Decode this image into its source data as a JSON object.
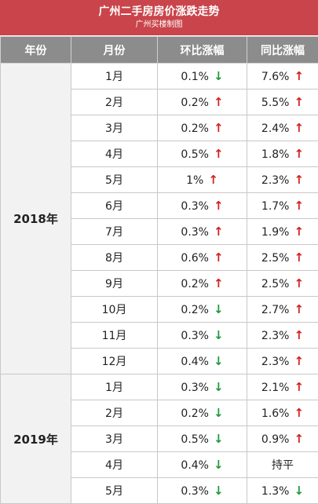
{
  "header": {
    "title": "广州二手房房价涨跌走势",
    "subtitle": "广州买楼制图"
  },
  "table": {
    "columns": [
      "年份",
      "月份",
      "环比涨幅",
      "同比涨幅"
    ],
    "groups": [
      {
        "year": "2018年",
        "rows": [
          {
            "month": "1月",
            "mom": {
              "value": "0.1%",
              "arrow": "↓",
              "color": "#1f9a3c"
            },
            "yoy": {
              "value": "7.6%",
              "arrow": "↑",
              "color": "#d42020"
            }
          },
          {
            "month": "2月",
            "mom": {
              "value": "0.2%",
              "arrow": "↑",
              "color": "#d42020"
            },
            "yoy": {
              "value": "5.5%",
              "arrow": "↑",
              "color": "#d42020"
            }
          },
          {
            "month": "3月",
            "mom": {
              "value": "0.2%",
              "arrow": "↑",
              "color": "#d42020"
            },
            "yoy": {
              "value": "2.4%",
              "arrow": "↑",
              "color": "#d42020"
            }
          },
          {
            "month": "4月",
            "mom": {
              "value": "0.5%",
              "arrow": "↑",
              "color": "#d42020"
            },
            "yoy": {
              "value": "1.8%",
              "arrow": "↑",
              "color": "#d42020"
            }
          },
          {
            "month": "5月",
            "mom": {
              "value": "1%",
              "arrow": "↑",
              "color": "#d42020"
            },
            "yoy": {
              "value": "2.3%",
              "arrow": "↑",
              "color": "#d42020"
            }
          },
          {
            "month": "6月",
            "mom": {
              "value": "0.3%",
              "arrow": "↑",
              "color": "#d42020"
            },
            "yoy": {
              "value": "1.7%",
              "arrow": "↑",
              "color": "#d42020"
            }
          },
          {
            "month": "7月",
            "mom": {
              "value": "0.3%",
              "arrow": "↑",
              "color": "#d42020"
            },
            "yoy": {
              "value": "1.9%",
              "arrow": "↑",
              "color": "#d42020"
            }
          },
          {
            "month": "8月",
            "mom": {
              "value": "0.6%",
              "arrow": "↑",
              "color": "#d42020"
            },
            "yoy": {
              "value": "2.5%",
              "arrow": "↑",
              "color": "#d42020"
            }
          },
          {
            "month": "9月",
            "mom": {
              "value": "0.2%",
              "arrow": "↑",
              "color": "#d42020"
            },
            "yoy": {
              "value": "2.5%",
              "arrow": "↑",
              "color": "#d42020"
            }
          },
          {
            "month": "10月",
            "mom": {
              "value": "0.2%",
              "arrow": "↓",
              "color": "#1f9a3c"
            },
            "yoy": {
              "value": "2.7%",
              "arrow": "↑",
              "color": "#d42020"
            }
          },
          {
            "month": "11月",
            "mom": {
              "value": "0.3%",
              "arrow": "↓",
              "color": "#1f9a3c"
            },
            "yoy": {
              "value": "2.3%",
              "arrow": "↑",
              "color": "#d42020"
            }
          },
          {
            "month": "12月",
            "mom": {
              "value": "0.4%",
              "arrow": "↓",
              "color": "#1f9a3c"
            },
            "yoy": {
              "value": "2.3%",
              "arrow": "↑",
              "color": "#d42020"
            }
          }
        ]
      },
      {
        "year": "2019年",
        "rows": [
          {
            "month": "1月",
            "mom": {
              "value": "0.3%",
              "arrow": "↓",
              "color": "#1f9a3c"
            },
            "yoy": {
              "value": "2.1%",
              "arrow": "↑",
              "color": "#d42020"
            }
          },
          {
            "month": "2月",
            "mom": {
              "value": "0.2%",
              "arrow": "↓",
              "color": "#1f9a3c"
            },
            "yoy": {
              "value": "1.6%",
              "arrow": "↑",
              "color": "#d42020"
            }
          },
          {
            "month": "3月",
            "mom": {
              "value": "0.5%",
              "arrow": "↓",
              "color": "#1f9a3c"
            },
            "yoy": {
              "value": "0.9%",
              "arrow": "↑",
              "color": "#d42020"
            }
          },
          {
            "month": "4月",
            "mom": {
              "value": "0.4%",
              "arrow": "↓",
              "color": "#1f9a3c"
            },
            "yoy": {
              "value": "持平"
            }
          },
          {
            "month": "5月",
            "mom": {
              "value": "0.3%",
              "arrow": "↓",
              "color": "#1f9a3c"
            },
            "yoy": {
              "value": "1.3%",
              "arrow": "↓",
              "color": "#1f9a3c"
            }
          }
        ]
      }
    ]
  }
}
